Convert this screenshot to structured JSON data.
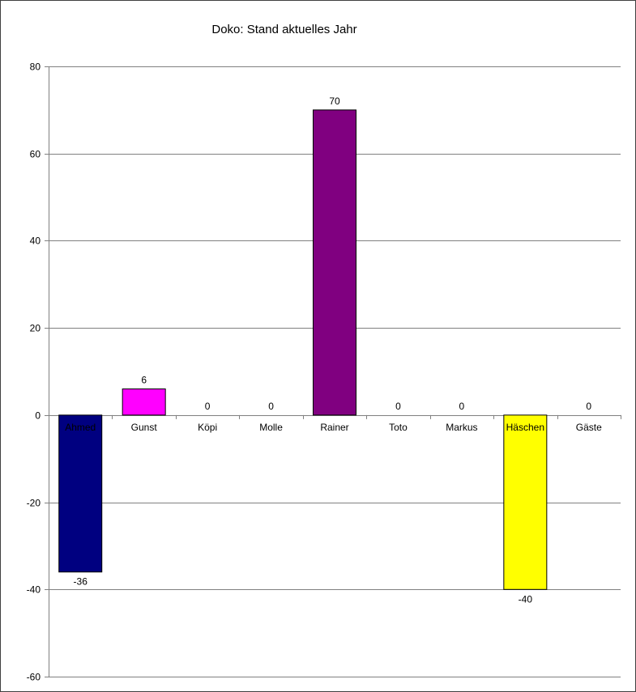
{
  "chart_data": {
    "type": "bar",
    "title": "Doko: Stand aktuelles Jahr",
    "xlabel": "",
    "ylabel": "",
    "categories": [
      "Ahmed",
      "Gunst",
      "Köpi",
      "Molle",
      "Rainer",
      "Toto",
      "Markus",
      "Häschen",
      "Gäste"
    ],
    "values": [
      -36,
      6,
      0,
      0,
      70,
      0,
      0,
      -40,
      0
    ],
    "data_labels": [
      "-36",
      "6",
      "0",
      "0",
      "70",
      "0",
      "0",
      "-40",
      "0"
    ],
    "colors": [
      "#000080",
      "#FF00FF",
      "#FFFFFF",
      "#FFFFFF",
      "#800080",
      "#FFFFFF",
      "#FFFFFF",
      "#FFFF00",
      "#FFFFFF"
    ],
    "ylim": [
      -60,
      80
    ],
    "yticks": [
      80,
      60,
      40,
      20,
      0,
      -20,
      -40,
      -60
    ],
    "ytick_labels": [
      "80",
      "60",
      "40",
      "20",
      "0",
      "-20",
      "-40",
      "-60"
    ],
    "grid": true,
    "legend": "none"
  }
}
